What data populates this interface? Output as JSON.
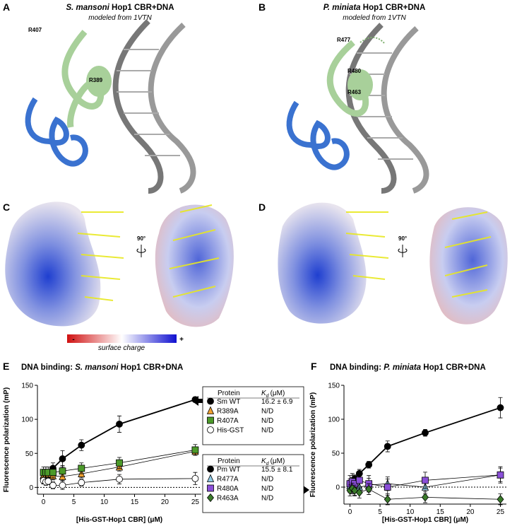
{
  "figure": {
    "panel_labels": [
      "A",
      "B",
      "C",
      "D",
      "E",
      "F"
    ],
    "structures": [
      {
        "species": "S. mansoni",
        "title": "Hop1 CBR+DNA",
        "note": "modeled from 1VTN",
        "residues": [
          "R407",
          "R389"
        ]
      },
      {
        "species": "P. miniata",
        "title": "Hop1 CBR+DNA",
        "note": "modeled from 1VTN",
        "residues": [
          "R477",
          "R480",
          "R463"
        ]
      }
    ],
    "rotation": "90°",
    "charge_scale": {
      "minus": "-",
      "plus": "+",
      "label": "surface charge"
    },
    "legend_header": {
      "protein": "Protein",
      "kd": "K",
      "kd_sub": "d",
      "kd_unit": "(μM)"
    }
  },
  "chart_data": [
    {
      "type": "scatter",
      "title_prefix": "DNA binding:",
      "species": "S. mansoni",
      "title_suffix": "Hop1 CBR+DNA",
      "xlabel": "[His-GST-Hop1 CBR] (μM)",
      "ylabel": "Fluorescence polarization (mP)",
      "x": [
        0,
        0.39,
        0.78,
        1.56,
        3.13,
        6.25,
        12.5,
        25
      ],
      "xlim": [
        -1,
        26
      ],
      "xticks": [
        0,
        5,
        10,
        15,
        20,
        25
      ],
      "ylim": [
        -10,
        150
      ],
      "yticks": [
        0,
        50,
        100,
        150
      ],
      "hline": 0,
      "series": [
        {
          "name": "Sm WT",
          "kd": "16.2 ± 6.9",
          "marker": "circle",
          "color": "#000000",
          "values": [
            13,
            15,
            18,
            28,
            42,
            62,
            93,
            129
          ],
          "errors": [
            5,
            5,
            5,
            8,
            12,
            8,
            12,
            4
          ]
        },
        {
          "name": "R389A",
          "kd": "N/D",
          "marker": "triangle",
          "color": "#f0a030",
          "values": [
            18,
            19,
            20,
            17,
            16,
            20,
            30,
            53
          ],
          "errors": [
            6,
            6,
            6,
            6,
            6,
            6,
            6,
            6
          ]
        },
        {
          "name": "R407A",
          "kd": "N/D",
          "marker": "square",
          "color": "#4c9a2a",
          "values": [
            22,
            22,
            22,
            22,
            24,
            28,
            36,
            55
          ],
          "errors": [
            8,
            8,
            8,
            8,
            8,
            8,
            8,
            8
          ]
        },
        {
          "name": "His-GST",
          "kd": "N/D",
          "marker": "circle",
          "color": "#ffffff",
          "values": [
            10,
            8,
            9,
            3,
            3,
            7,
            12,
            13
          ],
          "errors": [
            5,
            5,
            5,
            5,
            6,
            5,
            7,
            9
          ]
        }
      ]
    },
    {
      "type": "scatter",
      "title_prefix": "DNA binding:",
      "species": "P. miniata",
      "title_suffix": "Hop1 CBR+DNA",
      "xlabel": "[His-GST-Hop1 CBR] (μM)",
      "ylabel": "Fluorescence polarization (mP)",
      "x": [
        0,
        0.39,
        0.78,
        1.56,
        3.13,
        6.25,
        12.5,
        25
      ],
      "xlim": [
        -1,
        26
      ],
      "xticks": [
        0,
        5,
        10,
        15,
        20,
        25
      ],
      "ylim": [
        -25,
        150
      ],
      "yticks": [
        0,
        50,
        100,
        150
      ],
      "hline": 0,
      "series": [
        {
          "name": "Pm WT",
          "kd": "15.5 ± 8.1",
          "marker": "circle",
          "color": "#000000",
          "values": [
            5,
            8,
            12,
            20,
            33,
            60,
            80,
            117
          ],
          "errors": [
            5,
            6,
            6,
            6,
            5,
            8,
            5,
            15
          ]
        },
        {
          "name": "R477A",
          "kd": "N/D",
          "marker": "triangle",
          "color": "#8ecae6",
          "values": [
            2,
            0,
            -2,
            0,
            3,
            5,
            0,
            18
          ],
          "errors": [
            10,
            10,
            10,
            10,
            10,
            10,
            10,
            10
          ]
        },
        {
          "name": "R480A",
          "kd": "N/D",
          "marker": "square",
          "color": "#8a4fd8",
          "values": [
            5,
            8,
            5,
            10,
            5,
            0,
            10,
            18
          ],
          "errors": [
            12,
            12,
            12,
            12,
            12,
            12,
            12,
            12
          ]
        },
        {
          "name": "R463A",
          "kd": "N/D",
          "marker": "diamond",
          "color": "#3a7a2a",
          "values": [
            -5,
            -2,
            -5,
            -8,
            -3,
            -18,
            -15,
            -18
          ],
          "errors": [
            8,
            8,
            8,
            8,
            8,
            8,
            8,
            8
          ]
        }
      ]
    }
  ]
}
